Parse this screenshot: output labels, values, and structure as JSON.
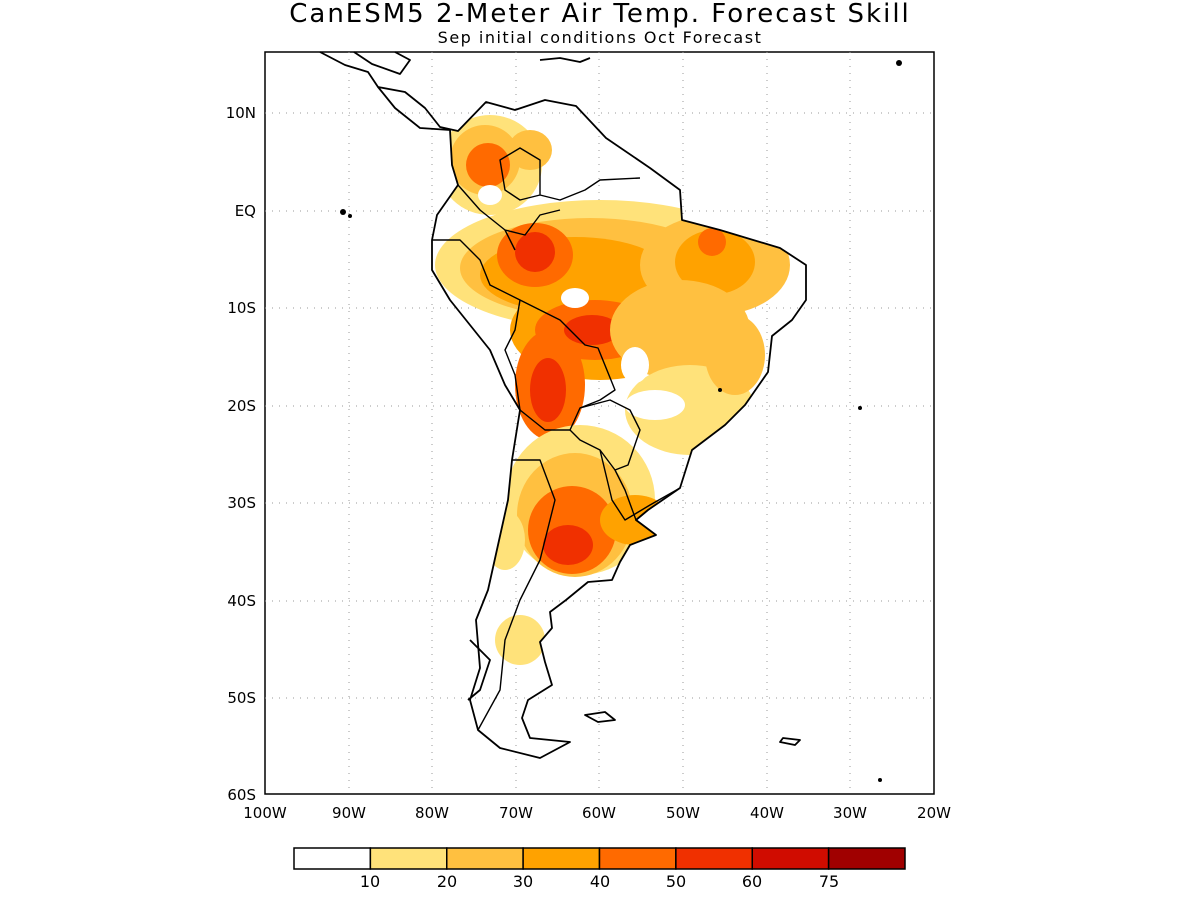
{
  "title": "CanESM5 2-Meter Air Temp. Forecast Skill",
  "subtitle": "Sep initial conditions   Oct Forecast",
  "map": {
    "lon_range": [
      -100,
      -20
    ],
    "lat_range": [
      -60,
      15
    ],
    "lon_ticks": [
      "100W",
      "90W",
      "80W",
      "70W",
      "60W",
      "50W",
      "40W",
      "30W",
      "20W"
    ],
    "lat_ticks": [
      "10N",
      "EQ",
      "10S",
      "20S",
      "30S",
      "40S",
      "50S",
      "60S"
    ],
    "grid": "dotted"
  },
  "colorbar": {
    "labels": [
      "10",
      "20",
      "30",
      "40",
      "50",
      "60",
      "75"
    ],
    "colors": [
      "#ffffff",
      "#ffe27a",
      "#ffc040",
      "#ffa200",
      "#ff6a00",
      "#f03000",
      "#d00c00",
      "#a00000"
    ]
  }
}
